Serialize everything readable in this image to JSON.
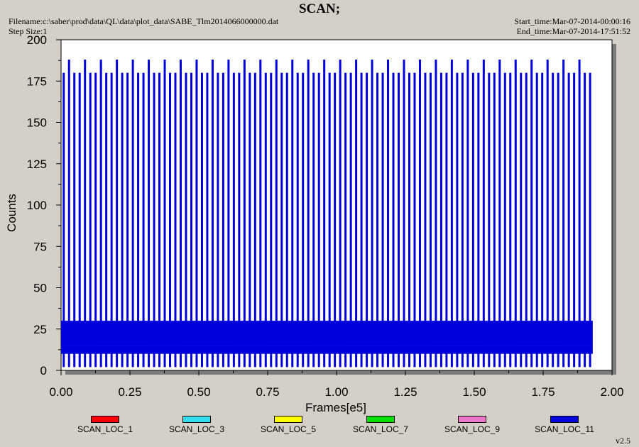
{
  "header": {
    "title": "SCAN;",
    "filename": "Filename:c:\\saber\\prod\\data\\QL\\data\\plot_data\\SABE_Tlm2014066000000.dat",
    "step_size": "Step Size:1",
    "start_time": "Start_time:Mar-07-2014-00:00:16",
    "end_time": "End_time:Mar-07-2014-17:51:52"
  },
  "version": "v2.5",
  "chart_data": {
    "type": "line",
    "title": "SCAN;",
    "xlabel": "Frames[e5]",
    "ylabel": "Counts",
    "xlim": [
      0,
      2.0
    ],
    "ylim": [
      0,
      200
    ],
    "x_ticks": [
      "0.00",
      "0.25",
      "0.50",
      "0.75",
      "1.00",
      "1.25",
      "1.50",
      "1.75",
      "2.00"
    ],
    "y_ticks": [
      "0",
      "25",
      "50",
      "75",
      "100",
      "125",
      "150",
      "175",
      "200"
    ],
    "grid": false,
    "legend_position": "bottom",
    "series": [
      {
        "name": "SCAN_LOC_1",
        "color": "#ff0000",
        "values": []
      },
      {
        "name": "SCAN_LOC_3",
        "color": "#33ddee",
        "values": []
      },
      {
        "name": "SCAN_LOC_5",
        "color": "#ffff00",
        "values": []
      },
      {
        "name": "SCAN_LOC_7",
        "color": "#00dd00",
        "values": []
      },
      {
        "name": "SCAN_LOC_9",
        "color": "#ee77cc",
        "values": []
      },
      {
        "name": "SCAN_LOC_11",
        "color": "#0000dd",
        "x_range": [
          0.0,
          1.93
        ],
        "dense_band": [
          15,
          30
        ],
        "low_band": [
          10,
          15
        ],
        "scan_pulse_peak": 180,
        "tall_pulse_peak": 188,
        "pulse_minimum": 2,
        "pulse_count": 100
      }
    ]
  }
}
